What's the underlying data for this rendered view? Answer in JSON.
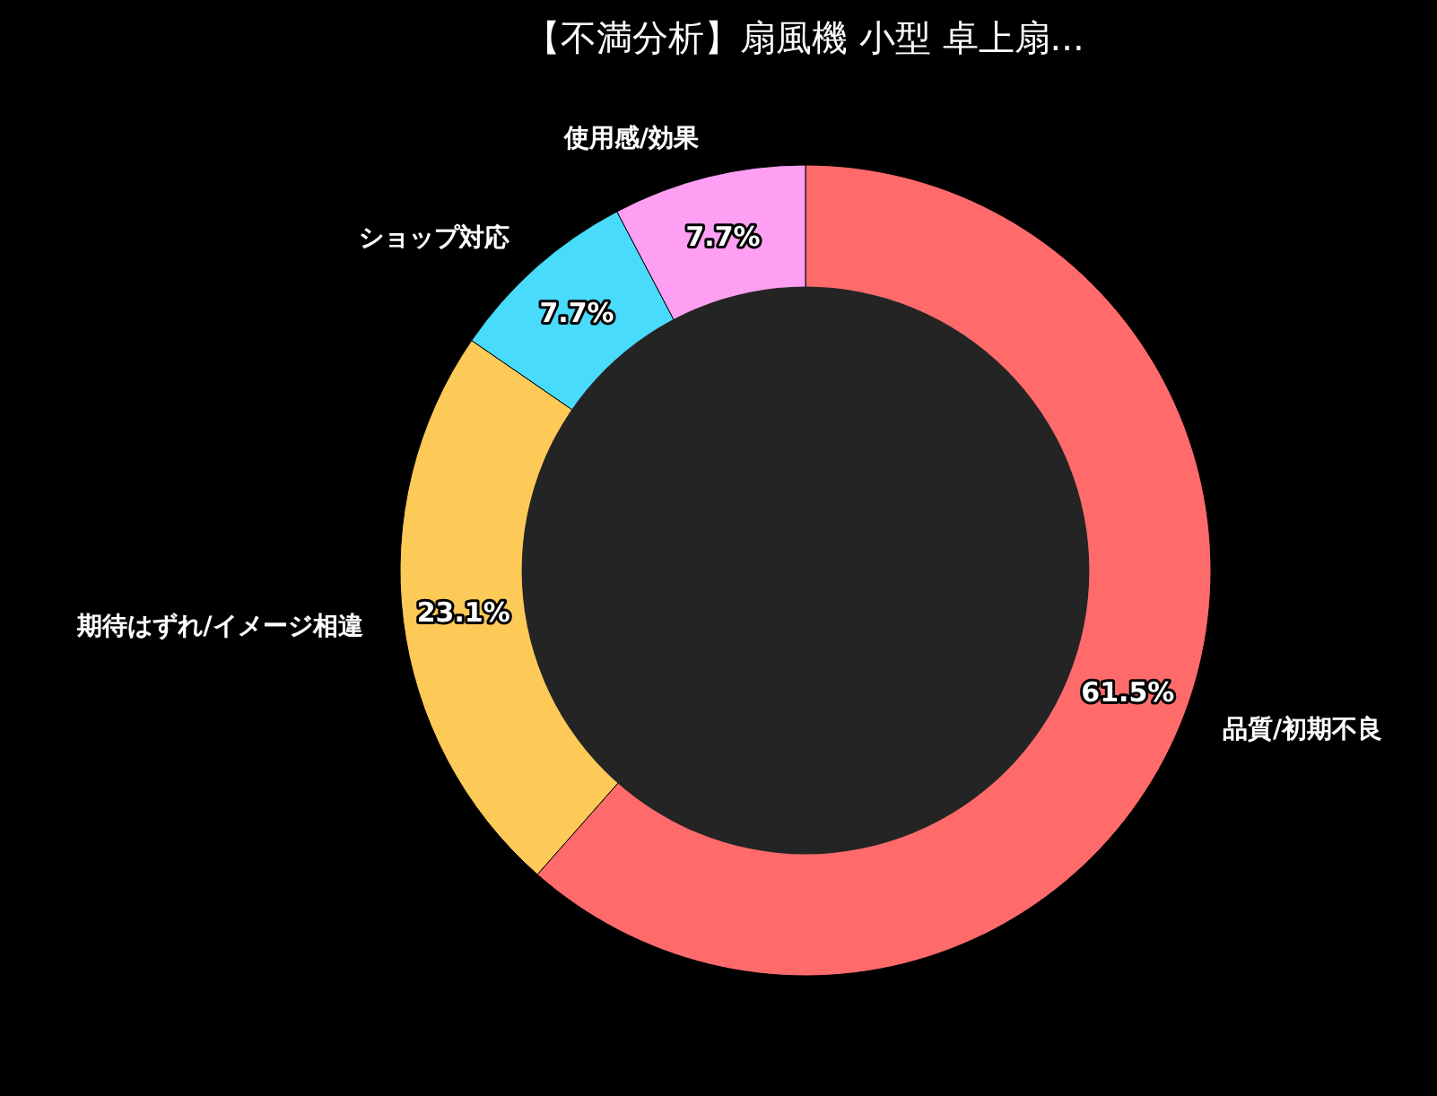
{
  "chart_data": {
    "type": "donut",
    "title": "【不満分析】扇風機 小型 卓上扇...",
    "categories": [
      "品質/初期不良",
      "期待はずれ/イメージ相違",
      "ショップ対応",
      "使用感/効果"
    ],
    "values": [
      61.5,
      23.1,
      7.7,
      7.7
    ],
    "value_labels": [
      "61.5%",
      "23.1%",
      "7.7%",
      "7.7%"
    ],
    "colors": [
      "#ff6b6b",
      "#feca57",
      "#48dbfb",
      "#ff9ff3"
    ]
  }
}
